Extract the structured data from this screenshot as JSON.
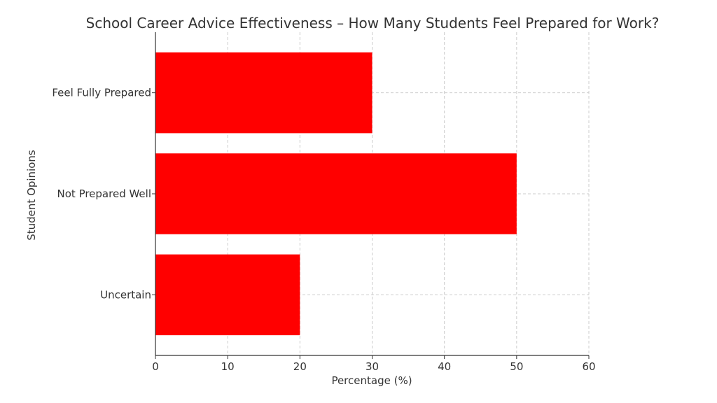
{
  "chart_data": {
    "type": "bar",
    "orientation": "horizontal",
    "title": "School Career Advice Effectiveness – How Many Students Feel Prepared for Work?",
    "xlabel": "Percentage (%)",
    "ylabel": "Student Opinions",
    "categories": [
      "Feel Fully Prepared",
      "Not Prepared Well",
      "Uncertain"
    ],
    "values": [
      30,
      50,
      20
    ],
    "xlim": [
      0,
      60
    ],
    "xticks": [
      0,
      10,
      20,
      30,
      40,
      50,
      60
    ],
    "grid": true,
    "bar_color": "#ff0000"
  }
}
